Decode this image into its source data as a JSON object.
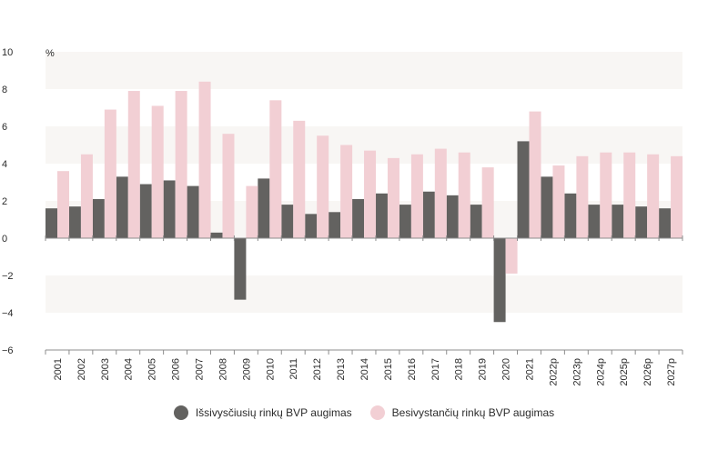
{
  "colors": {
    "developed": "#636260",
    "emerging": "#f2cfd4",
    "band": "#f8f6f4",
    "axis": "#8c8c8c",
    "text": "#2b2b2b"
  },
  "chart_data": {
    "type": "bar",
    "unit_label": "%",
    "ylim": [
      -6,
      10
    ],
    "yticks": [
      10,
      8,
      6,
      4,
      2,
      0,
      -2,
      -4,
      -6
    ],
    "ytick_labels": [
      "10",
      "8",
      "6",
      "4",
      "2",
      "0",
      "−2",
      "−4",
      "−6"
    ],
    "categories": [
      "2001",
      "2002",
      "2003",
      "2004",
      "2005",
      "2006",
      "2007",
      "2008",
      "2009",
      "2010",
      "2011",
      "2012",
      "2013",
      "2014",
      "2015",
      "2016",
      "2017",
      "2018",
      "2019",
      "2020",
      "2021",
      "2022p",
      "2023p",
      "2024p",
      "2025p",
      "2026p",
      "2027p"
    ],
    "series": [
      {
        "name": "Išsivysčiusių rinkų BVP augimas",
        "values": [
          1.6,
          1.7,
          2.1,
          3.3,
          2.9,
          3.1,
          2.8,
          0.3,
          -3.3,
          3.2,
          1.8,
          1.3,
          1.4,
          2.1,
          2.4,
          1.8,
          2.5,
          2.3,
          1.8,
          -4.5,
          5.2,
          3.3,
          2.4,
          1.8,
          1.8,
          1.7,
          1.6
        ]
      },
      {
        "name": "Besivystančių rinkų BVP augimas",
        "values": [
          3.6,
          4.5,
          6.9,
          7.9,
          7.1,
          7.9,
          8.4,
          5.6,
          2.8,
          7.4,
          6.3,
          5.5,
          5.0,
          4.7,
          4.3,
          4.5,
          4.8,
          4.6,
          3.8,
          -1.9,
          6.8,
          3.9,
          4.4,
          4.6,
          4.6,
          4.5,
          4.4
        ]
      }
    ]
  }
}
